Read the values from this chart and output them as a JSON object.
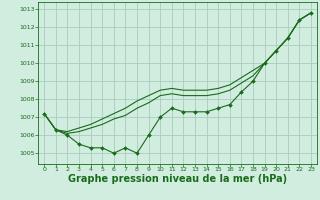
{
  "background_color": "#d0ede0",
  "grid_color": "#aaccbb",
  "line_color": "#1a6b1a",
  "xlabel": "Graphe pression niveau de la mer (hPa)",
  "xlabel_fontsize": 7,
  "ylim": [
    1004.4,
    1013.4
  ],
  "xlim": [
    -0.5,
    23.5
  ],
  "yticks": [
    1005,
    1006,
    1007,
    1008,
    1009,
    1010,
    1011,
    1012,
    1013
  ],
  "xticks": [
    0,
    1,
    2,
    3,
    4,
    5,
    6,
    7,
    8,
    9,
    10,
    11,
    12,
    13,
    14,
    15,
    16,
    17,
    18,
    19,
    20,
    21,
    22,
    23
  ],
  "series_markers": [
    1007.2,
    1006.3,
    1006.0,
    1005.5,
    1005.3,
    1005.3,
    1005.0,
    1005.3,
    1005.0,
    1006.0,
    1007.0,
    1007.5,
    1007.3,
    1007.3,
    1007.3,
    1007.5,
    1007.7,
    1008.4,
    1009.0,
    1010.0,
    1010.7,
    1011.4,
    1012.4,
    1012.8
  ],
  "series_upper": [
    1007.2,
    1006.3,
    1006.2,
    1006.4,
    1006.6,
    1006.9,
    1007.2,
    1007.5,
    1007.9,
    1008.2,
    1008.5,
    1008.6,
    1008.5,
    1008.5,
    1008.5,
    1008.6,
    1008.8,
    1009.2,
    1009.6,
    1010.0,
    1010.7,
    1011.4,
    1012.4,
    1012.8
  ],
  "series_mid": [
    1007.2,
    1006.3,
    1006.1,
    1006.2,
    1006.4,
    1006.6,
    1006.9,
    1007.1,
    1007.5,
    1007.8,
    1008.2,
    1008.3,
    1008.2,
    1008.2,
    1008.2,
    1008.3,
    1008.5,
    1008.9,
    1009.3,
    1010.0,
    1010.7,
    1011.4,
    1012.4,
    1012.8
  ]
}
